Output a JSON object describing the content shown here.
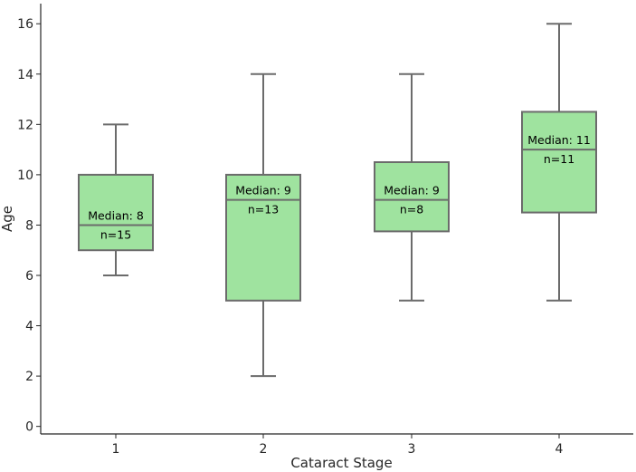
{
  "chart_data": {
    "type": "box",
    "title": "",
    "xlabel": "Cataract Stage",
    "ylabel": "Age",
    "ylim": [
      -0.3,
      16.8
    ],
    "yticks": [
      0,
      2,
      4,
      6,
      8,
      10,
      12,
      14,
      16
    ],
    "categories": [
      "1",
      "2",
      "3",
      "4"
    ],
    "boxes": [
      {
        "category": "1",
        "whisker_low": 6,
        "q1": 7,
        "median": 8,
        "q3": 10,
        "whisker_high": 12,
        "n": 15,
        "median_label": "Median: 8",
        "n_label": "n=15"
      },
      {
        "category": "2",
        "whisker_low": 2,
        "q1": 5,
        "median": 9,
        "q3": 10,
        "whisker_high": 14,
        "n": 13,
        "median_label": "Median: 9",
        "n_label": "n=13"
      },
      {
        "category": "3",
        "whisker_low": 5,
        "q1": 7.75,
        "median": 9,
        "q3": 10.5,
        "whisker_high": 14,
        "n": 8,
        "median_label": "Median: 9",
        "n_label": "n=8"
      },
      {
        "category": "4",
        "whisker_low": 5,
        "q1": 8.5,
        "median": 11,
        "q3": 12.5,
        "whisker_high": 16,
        "n": 11,
        "median_label": "Median: 11",
        "n_label": "n=11"
      }
    ],
    "colors": {
      "box_fill": "#9fe39f",
      "box_edge": "#6b6b6b",
      "axis": "#262626"
    },
    "grid": false,
    "legend": "none"
  }
}
